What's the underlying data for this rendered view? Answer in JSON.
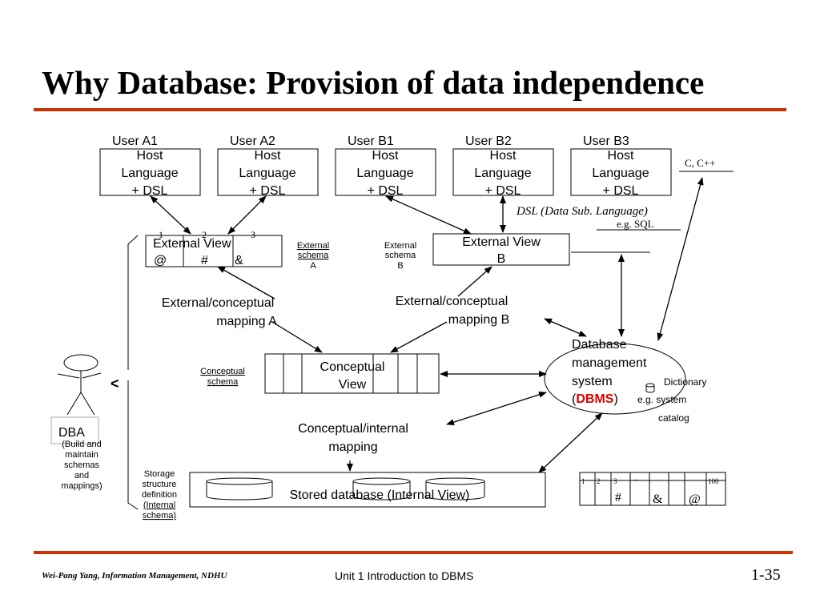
{
  "title": "Why Database: Provision of data independence",
  "accent_color": "#cc3300",
  "users": [
    {
      "label": "User A1",
      "lines": [
        "Host",
        "Language",
        "+ DSL"
      ]
    },
    {
      "label": "User A2",
      "lines": [
        "Host",
        "Language",
        "+ DSL"
      ]
    },
    {
      "label": "User B1",
      "lines": [
        "Host",
        "Language",
        "+ DSL"
      ]
    },
    {
      "label": "User B2",
      "lines": [
        "Host",
        "Language",
        "+ DSL"
      ]
    },
    {
      "label": "User B3",
      "lines": [
        "Host",
        "Language",
        "+ DSL"
      ]
    }
  ],
  "c_cpp": "C, C++",
  "dsl_note": "DSL (Data Sub. Language)",
  "dsl_example": "e.g. SQL",
  "external_view_a": {
    "title": "External View",
    "numbers": [
      "1",
      "2",
      "3"
    ],
    "symbols": [
      "@",
      "#",
      "&"
    ]
  },
  "external_schema_a": [
    "External",
    "schema",
    "A"
  ],
  "external_schema_b": [
    "External",
    "schema",
    "B"
  ],
  "external_view_b": [
    "External View",
    "B"
  ],
  "mapping_a": [
    "External/conceptual",
    "mapping A"
  ],
  "mapping_b": [
    "External/conceptual",
    "mapping B"
  ],
  "conceptual_schema": [
    "Conceptual",
    "schema"
  ],
  "conceptual_view": [
    "Conceptual",
    "View"
  ],
  "dbms": {
    "lines": [
      "Database",
      "management",
      "system"
    ],
    "open": "(",
    "name": "DBMS",
    "close": ")",
    "dbms_color": "#dd0000"
  },
  "dictionary": [
    "Dictionary",
    "e.g. system",
    "catalog"
  ],
  "conceptual_internal": [
    "Conceptual/internal",
    "mapping"
  ],
  "stored_database": "Stored database (Internal View)",
  "storage_def": [
    "Storage",
    "structure",
    "definition",
    "(Internal",
    "schema)"
  ],
  "storage_table": {
    "numbers": [
      "1",
      "2",
      "3",
      "...",
      "100"
    ],
    "symbols": [
      "#",
      "&",
      "@"
    ]
  },
  "dba": {
    "label": "DBA",
    "lines": [
      "(Build and",
      "maintain",
      "schemas",
      "and",
      "mappings)"
    ],
    "bracket": "<"
  },
  "footer": {
    "author": "Wei-Pang Yang, Information Management, NDHU",
    "unit": "Unit 1  Introduction to DBMS",
    "page": "1-35"
  }
}
